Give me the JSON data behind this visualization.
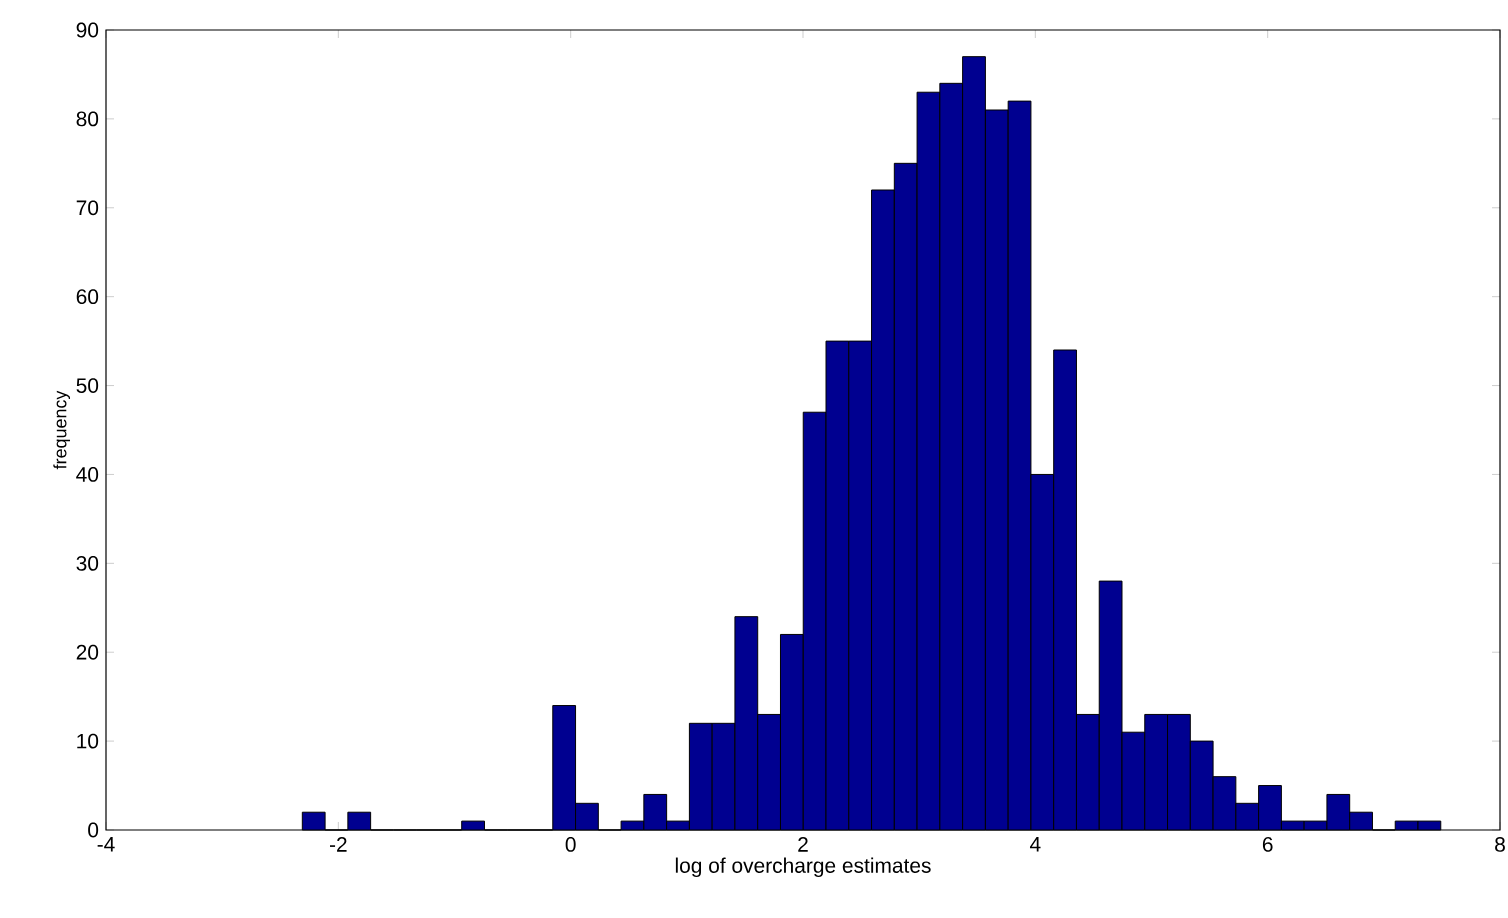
{
  "chart_data": {
    "type": "histogram",
    "xlabel": "log of overcharge estimates",
    "ylabel": "frequency",
    "color": "#000090",
    "bins": [
      -2.31,
      -2.114,
      -1.918,
      -1.722,
      -1.526,
      -1.33,
      -1.134,
      -0.938,
      -0.742,
      -0.546,
      -0.35,
      -0.154,
      0.042,
      0.238,
      0.434,
      0.63,
      0.826,
      1.022,
      1.218,
      1.414,
      1.61,
      1.806,
      2.002,
      2.198,
      2.394,
      2.59,
      2.786,
      2.982,
      3.178,
      3.374,
      3.57,
      3.766,
      3.962,
      4.158,
      4.354,
      4.55,
      4.746,
      4.942,
      5.138,
      5.334,
      5.53,
      5.726,
      5.922,
      6.118,
      6.314,
      6.51,
      6.706,
      6.902,
      7.098,
      7.294,
      7.49
    ],
    "values": [
      2,
      0,
      2,
      0,
      0,
      0,
      0,
      1,
      0,
      0,
      0,
      14,
      3,
      0,
      1,
      4,
      1,
      12,
      12,
      24,
      13,
      22,
      47,
      55,
      55,
      72,
      75,
      83,
      84,
      87,
      81,
      82,
      40,
      54,
      13,
      28,
      11,
      13,
      13,
      10,
      6,
      3,
      5,
      1,
      1,
      4,
      2,
      0,
      1,
      1
    ],
    "xlim": [
      -4,
      8
    ],
    "ylim": [
      0,
      90
    ],
    "xticks": [
      -4,
      -2,
      0,
      2,
      4,
      6,
      8
    ],
    "yticks": [
      0,
      10,
      20,
      30,
      40,
      50,
      60,
      70,
      80,
      90
    ]
  }
}
